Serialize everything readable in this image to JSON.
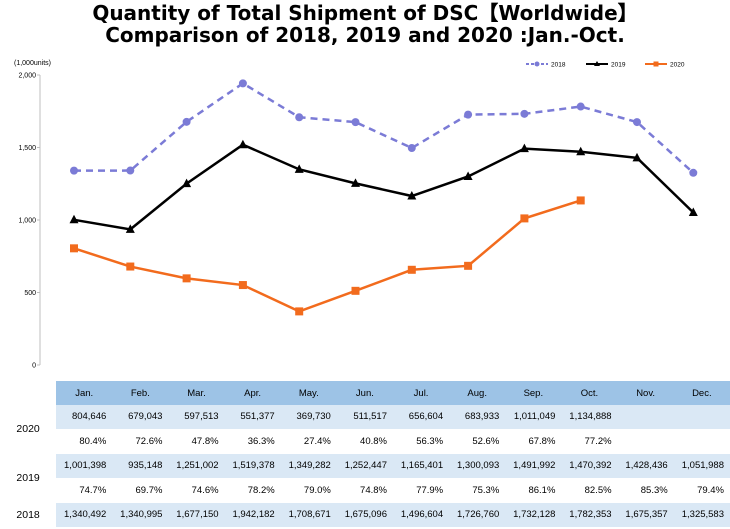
{
  "header": {
    "title_line1": "Quantity of Total Shipment of DSC【Worldwide】",
    "title_line2": "Comparison of 2018, 2019 and 2020 :Jan.-Oct."
  },
  "chart_data": {
    "type": "line",
    "unit_label": "(1,000units)",
    "categories": [
      "Jan.",
      "Feb.",
      "Mar.",
      "Apr.",
      "May.",
      "Jun.",
      "Jul.",
      "Aug.",
      "Sep.",
      "Oct.",
      "Nov.",
      "Dec."
    ],
    "ylim": [
      0,
      2000
    ],
    "yticks": [
      "0",
      "500",
      "1,000",
      "1,500",
      "2,000"
    ],
    "ytick_values": [
      0,
      500,
      1000,
      1500,
      2000
    ],
    "legend_position": "top-right",
    "grid": false,
    "series": [
      {
        "name": "2018",
        "color": "#7b7bd6",
        "dash": true,
        "marker": "circle",
        "values": [
          1340.492,
          1340.995,
          1677.15,
          1942.182,
          1708.671,
          1675.096,
          1496.604,
          1726.76,
          1732.128,
          1782.353,
          1675.357,
          1325.583
        ]
      },
      {
        "name": "2019",
        "color": "#000000",
        "dash": false,
        "marker": "triangle",
        "values": [
          1001.398,
          935.148,
          1251.002,
          1519.378,
          1349.282,
          1252.447,
          1165.401,
          1300.093,
          1491.992,
          1470.392,
          1428.436,
          1051.988
        ]
      },
      {
        "name": "2020",
        "color": "#f26b1d",
        "dash": false,
        "marker": "square",
        "values": [
          804.646,
          679.043,
          597.513,
          551.377,
          369.73,
          511.517,
          656.604,
          683.933,
          1011.049,
          1134.888,
          null,
          null
        ]
      }
    ]
  },
  "table": {
    "months": [
      "Jan.",
      "Feb.",
      "Mar.",
      "Apr.",
      "May.",
      "Jun.",
      "Jul.",
      "Aug.",
      "Sep.",
      "Oct.",
      "Nov.",
      "Dec."
    ],
    "rows": [
      {
        "year": "2020",
        "values": [
          "804,646",
          "679,043",
          "597,513",
          "551,377",
          "369,730",
          "511,517",
          "656,604",
          "683,933",
          "1,011,049",
          "1,134,888",
          "",
          ""
        ],
        "ratios": [
          "80.4%",
          "72.6%",
          "47.8%",
          "36.3%",
          "27.4%",
          "40.8%",
          "56.3%",
          "52.6%",
          "67.8%",
          "77.2%",
          "",
          ""
        ]
      },
      {
        "year": "2019",
        "values": [
          "1,001,398",
          "935,148",
          "1,251,002",
          "1,519,378",
          "1,349,282",
          "1,252,447",
          "1,165,401",
          "1,300,093",
          "1,491,992",
          "1,470,392",
          "1,428,436",
          "1,051,988"
        ],
        "ratios": [
          "74.7%",
          "69.7%",
          "74.6%",
          "78.2%",
          "79.0%",
          "74.8%",
          "77.9%",
          "75.3%",
          "86.1%",
          "82.5%",
          "85.3%",
          "79.4%"
        ]
      },
      {
        "year": "2018",
        "values": [
          "1,340,492",
          "1,340,995",
          "1,677,150",
          "1,942,182",
          "1,708,671",
          "1,675,096",
          "1,496,604",
          "1,726,760",
          "1,732,128",
          "1,782,353",
          "1,675,357",
          "1,325,583"
        ]
      }
    ]
  }
}
